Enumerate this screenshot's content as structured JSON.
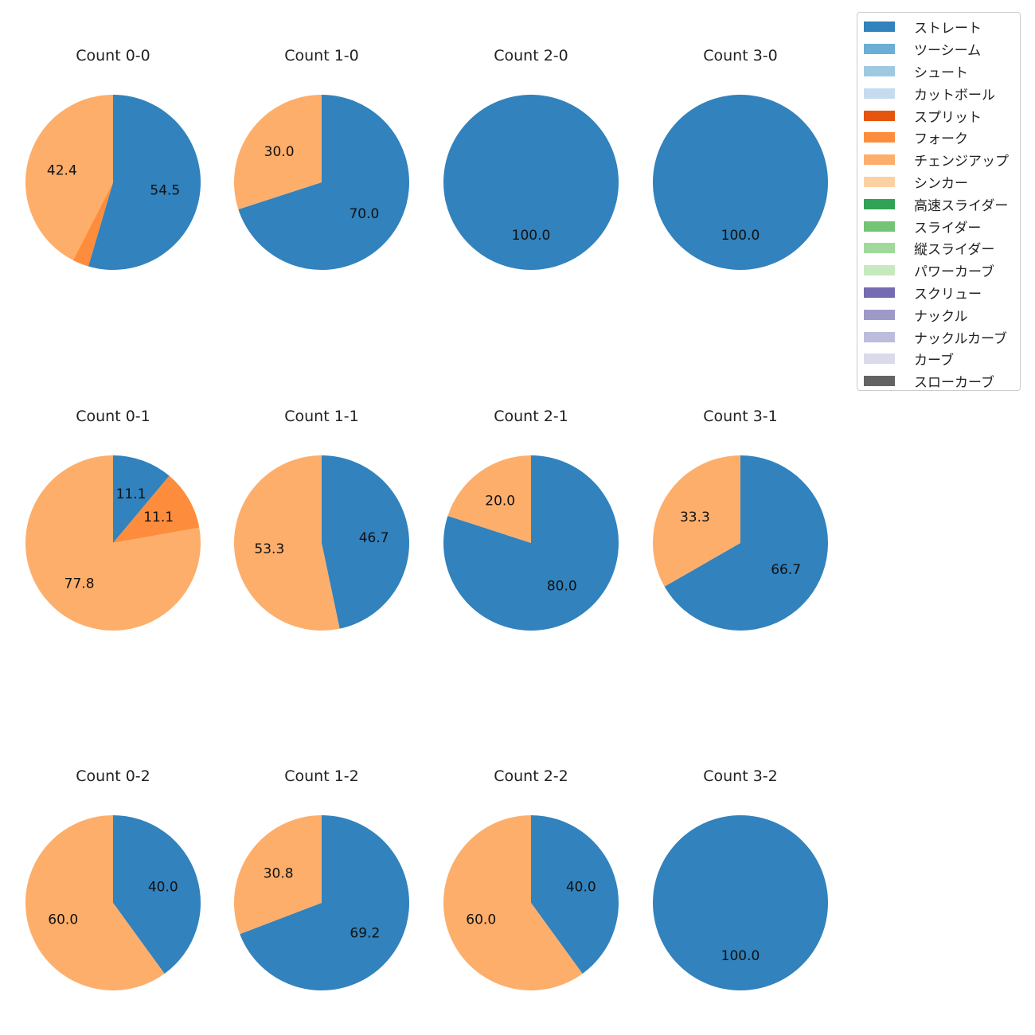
{
  "chart_data": {
    "type": "pie",
    "legend": {
      "placement": "top-right",
      "entries": [
        {
          "name": "ストレート",
          "color": "#3182bd"
        },
        {
          "name": "ツーシーム",
          "color": "#6baed6"
        },
        {
          "name": "シュート",
          "color": "#9ecae1"
        },
        {
          "name": "カットボール",
          "color": "#c6dbef"
        },
        {
          "name": "スプリット",
          "color": "#e6550d"
        },
        {
          "name": "フォーク",
          "color": "#fd8d3c"
        },
        {
          "name": "チェンジアップ",
          "color": "#fdae6b"
        },
        {
          "name": "シンカー",
          "color": "#fdd0a2"
        },
        {
          "name": "高速スライダー",
          "color": "#31a354"
        },
        {
          "name": "スライダー",
          "color": "#74c476"
        },
        {
          "name": "縦スライダー",
          "color": "#a1d99b"
        },
        {
          "name": "パワーカーブ",
          "color": "#c7e9c0"
        },
        {
          "name": "スクリュー",
          "color": "#756bb1"
        },
        {
          "name": "ナックル",
          "color": "#9e9ac8"
        },
        {
          "name": "ナックルカーブ",
          "color": "#bcbddc"
        },
        {
          "name": "カーブ",
          "color": "#dadaeb"
        },
        {
          "name": "スローカーブ",
          "color": "#636363"
        }
      ]
    },
    "charts": [
      {
        "title": "Count 0-0",
        "slices": [
          {
            "name": "ストレート",
            "value": 54.5,
            "label": "54.5"
          },
          {
            "name": "フォーク",
            "value": 3.0,
            "label": ""
          },
          {
            "name": "チェンジアップ",
            "value": 42.4,
            "label": "42.4"
          }
        ]
      },
      {
        "title": "Count 1-0",
        "slices": [
          {
            "name": "ストレート",
            "value": 70.0,
            "label": "70.0"
          },
          {
            "name": "チェンジアップ",
            "value": 30.0,
            "label": "30.0"
          }
        ]
      },
      {
        "title": "Count 2-0",
        "slices": [
          {
            "name": "ストレート",
            "value": 100.0,
            "label": "100.0"
          }
        ]
      },
      {
        "title": "Count 3-0",
        "slices": [
          {
            "name": "ストレート",
            "value": 100.0,
            "label": "100.0"
          }
        ]
      },
      {
        "title": "Count 0-1",
        "slices": [
          {
            "name": "ストレート",
            "value": 11.1,
            "label": "11.1"
          },
          {
            "name": "フォーク",
            "value": 11.1,
            "label": "11.1"
          },
          {
            "name": "チェンジアップ",
            "value": 77.8,
            "label": "77.8"
          }
        ]
      },
      {
        "title": "Count 1-1",
        "slices": [
          {
            "name": "ストレート",
            "value": 46.7,
            "label": "46.7"
          },
          {
            "name": "チェンジアップ",
            "value": 53.3,
            "label": "53.3"
          }
        ]
      },
      {
        "title": "Count 2-1",
        "slices": [
          {
            "name": "ストレート",
            "value": 80.0,
            "label": "80.0"
          },
          {
            "name": "チェンジアップ",
            "value": 20.0,
            "label": "20.0"
          }
        ]
      },
      {
        "title": "Count 3-1",
        "slices": [
          {
            "name": "ストレート",
            "value": 66.7,
            "label": "66.7"
          },
          {
            "name": "チェンジアップ",
            "value": 33.3,
            "label": "33.3"
          }
        ]
      },
      {
        "title": "Count 0-2",
        "slices": [
          {
            "name": "ストレート",
            "value": 40.0,
            "label": "40.0"
          },
          {
            "name": "チェンジアップ",
            "value": 60.0,
            "label": "60.0"
          }
        ]
      },
      {
        "title": "Count 1-2",
        "slices": [
          {
            "name": "ストレート",
            "value": 69.2,
            "label": "69.2"
          },
          {
            "name": "チェンジアップ",
            "value": 30.8,
            "label": "30.8"
          }
        ]
      },
      {
        "title": "Count 2-2",
        "slices": [
          {
            "name": "ストレート",
            "value": 40.0,
            "label": "40.0"
          },
          {
            "name": "チェンジアップ",
            "value": 60.0,
            "label": "60.0"
          }
        ]
      },
      {
        "title": "Count 3-2",
        "slices": [
          {
            "name": "ストレート",
            "value": 100.0,
            "label": "100.0"
          }
        ]
      }
    ]
  }
}
